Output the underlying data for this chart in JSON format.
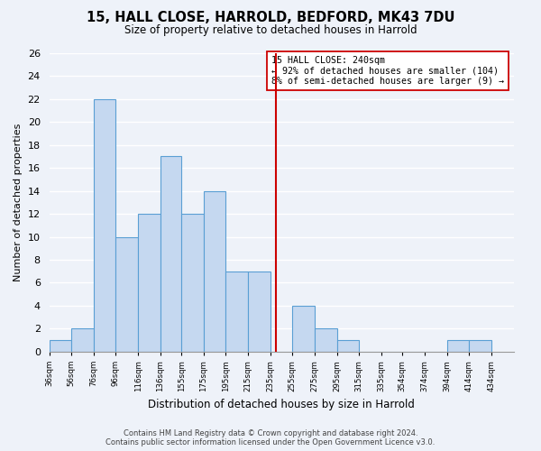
{
  "title": "15, HALL CLOSE, HARROLD, BEDFORD, MK43 7DU",
  "subtitle": "Size of property relative to detached houses in Harrold",
  "xlabel": "Distribution of detached houses by size in Harrold",
  "ylabel": "Number of detached properties",
  "bar_color": "#c5d8f0",
  "bar_edge_color": "#5a9fd4",
  "bin_left_edges": [
    36,
    56,
    76,
    96,
    116,
    136,
    155,
    175,
    195,
    215,
    235,
    255,
    275,
    295,
    315,
    335,
    354,
    374,
    394,
    414
  ],
  "bin_widths": [
    20,
    20,
    20,
    20,
    20,
    19,
    20,
    20,
    20,
    20,
    20,
    20,
    20,
    20,
    20,
    19,
    20,
    20,
    20,
    20
  ],
  "bin_labels": [
    "36sqm",
    "56sqm",
    "76sqm",
    "96sqm",
    "116sqm",
    "136sqm",
    "155sqm",
    "175sqm",
    "195sqm",
    "215sqm",
    "235sqm",
    "255sqm",
    "275sqm",
    "295sqm",
    "315sqm",
    "335sqm",
    "354sqm",
    "374sqm",
    "394sqm",
    "414sqm",
    "434sqm"
  ],
  "counts": [
    1,
    2,
    22,
    10,
    12,
    17,
    12,
    14,
    7,
    7,
    0,
    4,
    2,
    1,
    0,
    0,
    0,
    0,
    1,
    1
  ],
  "xlim": [
    36,
    454
  ],
  "ylim": [
    0,
    26
  ],
  "yticks": [
    0,
    2,
    4,
    6,
    8,
    10,
    12,
    14,
    16,
    18,
    20,
    22,
    24,
    26
  ],
  "xtick_positions": [
    36,
    56,
    76,
    96,
    116,
    136,
    155,
    175,
    195,
    215,
    235,
    255,
    275,
    295,
    315,
    335,
    354,
    374,
    394,
    414,
    434
  ],
  "property_line_x": 240,
  "property_line_color": "#cc0000",
  "annotation_title": "15 HALL CLOSE: 240sqm",
  "annotation_line2": "← 92% of detached houses are smaller (104)",
  "annotation_line3": "8% of semi-detached houses are larger (9) →",
  "annotation_box_color": "#ffffff",
  "annotation_box_edge": "#cc0000",
  "footer_line1": "Contains HM Land Registry data © Crown copyright and database right 2024.",
  "footer_line2": "Contains public sector information licensed under the Open Government Licence v3.0.",
  "background_color": "#eef2f9"
}
